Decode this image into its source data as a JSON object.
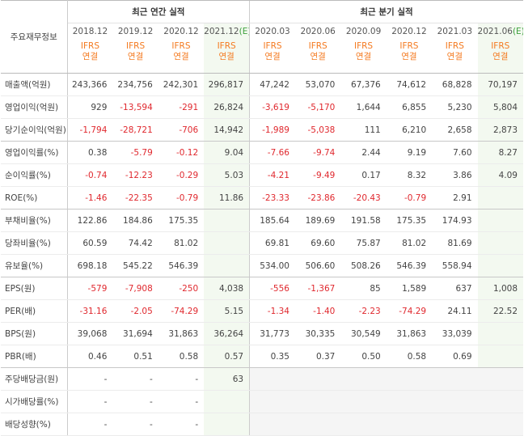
{
  "table": {
    "corner": "주요재무정보",
    "sections": [
      {
        "title": "최근 연간 실적",
        "columns": [
          {
            "period": "2018.12",
            "basis": [
              "IFRS",
              "연결"
            ]
          },
          {
            "period": "2019.12",
            "basis": [
              "IFRS",
              "연결"
            ]
          },
          {
            "period": "2020.12",
            "basis": [
              "IFRS",
              "연결"
            ]
          },
          {
            "period": "2021.12",
            "estimate": "(E)",
            "basis": [
              "IFRS",
              "연결"
            ]
          }
        ]
      },
      {
        "title": "최근 분기 실적",
        "columns": [
          {
            "period": "2020.03",
            "basis": [
              "IFRS",
              "연결"
            ]
          },
          {
            "period": "2020.06",
            "basis": [
              "IFRS",
              "연결"
            ]
          },
          {
            "period": "2020.09",
            "basis": [
              "IFRS",
              "연결"
            ]
          },
          {
            "period": "2020.12",
            "basis": [
              "IFRS",
              "연결"
            ]
          },
          {
            "period": "2021.03",
            "basis": [
              "IFRS",
              "연결"
            ]
          },
          {
            "period": "2021.06",
            "estimate": "(E)",
            "basis": [
              "IFRS",
              "연결"
            ]
          }
        ]
      }
    ],
    "row_groups": [
      {
        "rows": [
          {
            "label": "매출액(억원)",
            "values": [
              "243,366",
              "234,756",
              "242,301",
              "296,817",
              "47,242",
              "53,070",
              "67,376",
              "74,612",
              "68,828",
              "70,197"
            ]
          },
          {
            "label": "영업이익(억원)",
            "values": [
              "929",
              "-13,594",
              "-291",
              "26,824",
              "-3,619",
              "-5,170",
              "1,644",
              "6,855",
              "5,230",
              "5,804"
            ]
          },
          {
            "label": "당기순이익(억원)",
            "values": [
              "-1,794",
              "-28,721",
              "-706",
              "14,942",
              "-1,989",
              "-5,038",
              "111",
              "6,210",
              "2,658",
              "2,873"
            ]
          }
        ]
      },
      {
        "rows": [
          {
            "label": "영업이익률(%)",
            "values": [
              "0.38",
              "-5.79",
              "-0.12",
              "9.04",
              "-7.66",
              "-9.74",
              "2.44",
              "9.19",
              "7.60",
              "8.27"
            ]
          },
          {
            "label": "순이익률(%)",
            "values": [
              "-0.74",
              "-12.23",
              "-0.29",
              "5.03",
              "-4.21",
              "-9.49",
              "0.17",
              "8.32",
              "3.86",
              "4.09"
            ]
          },
          {
            "label": "ROE(%)",
            "values": [
              "-1.46",
              "-22.35",
              "-0.79",
              "11.86",
              "-23.33",
              "-23.86",
              "-20.43",
              "-0.79",
              "2.91",
              null
            ]
          }
        ]
      },
      {
        "rows": [
          {
            "label": "부채비율(%)",
            "values": [
              "122.86",
              "184.86",
              "175.35",
              null,
              "185.64",
              "189.69",
              "191.58",
              "175.35",
              "174.93",
              null
            ]
          },
          {
            "label": "당좌비율(%)",
            "values": [
              "60.59",
              "74.42",
              "81.02",
              null,
              "69.81",
              "69.60",
              "75.87",
              "81.02",
              "81.69",
              null
            ]
          },
          {
            "label": "유보율(%)",
            "values": [
              "698.18",
              "545.22",
              "546.39",
              null,
              "534.00",
              "506.60",
              "508.26",
              "546.39",
              "558.94",
              null
            ]
          }
        ]
      },
      {
        "rows": [
          {
            "label": "EPS(원)",
            "values": [
              "-579",
              "-7,908",
              "-250",
              "4,038",
              "-556",
              "-1,367",
              "85",
              "1,589",
              "637",
              "1,008"
            ]
          },
          {
            "label": "PER(배)",
            "values": [
              "-31.16",
              "-2.05",
              "-74.29",
              "5.15",
              "-1.34",
              "-1.40",
              "-2.23",
              "-74.29",
              "24.11",
              "22.52"
            ]
          },
          {
            "label": "BPS(원)",
            "values": [
              "39,068",
              "31,694",
              "31,863",
              "36,264",
              "31,773",
              "30,335",
              "30,549",
              "31,863",
              "33,039",
              null
            ]
          },
          {
            "label": "PBR(배)",
            "values": [
              "0.46",
              "0.51",
              "0.58",
              "0.57",
              "0.35",
              "0.37",
              "0.50",
              "0.58",
              "0.69",
              null
            ]
          }
        ]
      },
      {
        "rows": [
          {
            "label": "주당배당금(원)",
            "values": [
              "-",
              "-",
              "-",
              "63",
              null,
              null,
              null,
              null,
              null,
              null
            ]
          },
          {
            "label": "시가배당률(%)",
            "values": [
              "-",
              "-",
              "-",
              null,
              null,
              null,
              null,
              null,
              null,
              null
            ]
          },
          {
            "label": "배당성향(%)",
            "values": [
              "-",
              "-",
              "-",
              null,
              null,
              null,
              null,
              null,
              null,
              null
            ]
          }
        ]
      }
    ]
  }
}
